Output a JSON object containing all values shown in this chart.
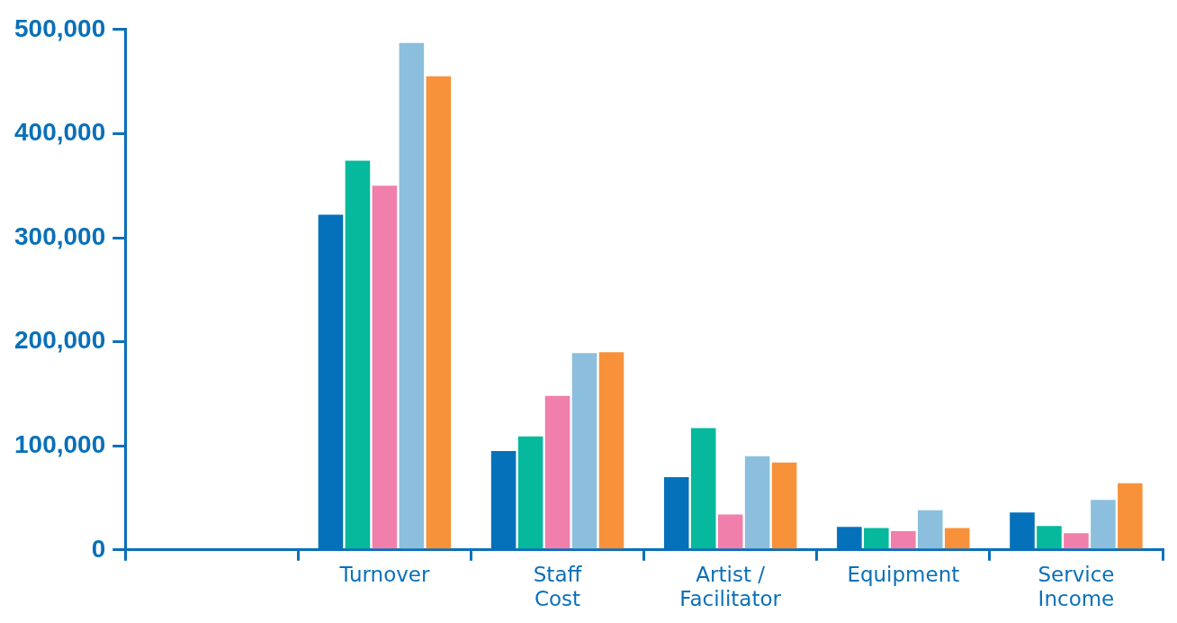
{
  "chart_data": {
    "type": "bar",
    "categories": [
      null,
      "Turnover",
      "Staff\nCost",
      "Artist /\nFacilitator",
      "Equipment",
      "Service\nIncome"
    ],
    "series": [
      {
        "color": "#0571bb",
        "values": [
          null,
          322000,
          95000,
          70000,
          22000,
          36000
        ]
      },
      {
        "color": "#06b89c",
        "values": [
          null,
          374000,
          109000,
          117000,
          21000,
          23000
        ]
      },
      {
        "color": "#f07fab",
        "values": [
          null,
          350000,
          148000,
          34000,
          18000,
          16000
        ]
      },
      {
        "color": "#8bbfdd",
        "values": [
          null,
          487000,
          189000,
          90000,
          38000,
          48000
        ]
      },
      {
        "color": "#f7923a",
        "values": [
          null,
          455000,
          190000,
          84000,
          21000,
          64000
        ]
      }
    ],
    "ylim": [
      0,
      500000
    ],
    "yticks": [
      {
        "value": 0,
        "label": "0"
      },
      {
        "value": 100000,
        "label": "100,000"
      },
      {
        "value": 200000,
        "label": "200,000"
      },
      {
        "value": 300000,
        "label": "300,000"
      },
      {
        "value": 400000,
        "label": "400,000"
      },
      {
        "value": 500000,
        "label": "500,000"
      }
    ],
    "grid": false,
    "legend": false
  }
}
